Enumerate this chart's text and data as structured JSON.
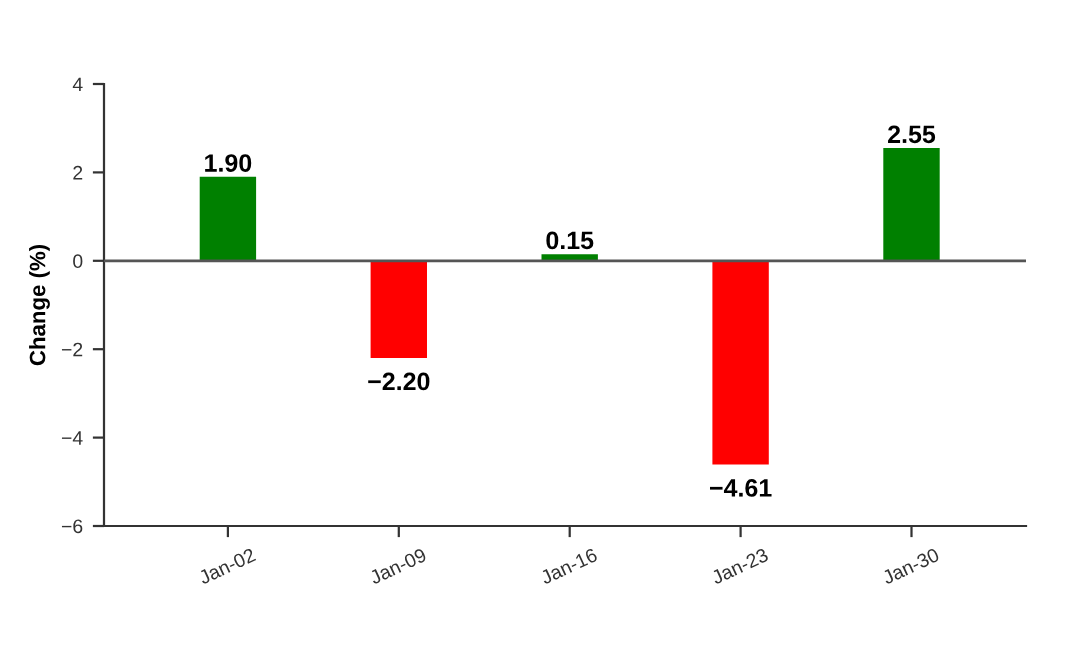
{
  "chart_data": {
    "type": "bar",
    "ylabel": "Change (%)",
    "categories": [
      "Jan-02",
      "Jan-09",
      "Jan-16",
      "Jan-23",
      "Jan-30"
    ],
    "values": [
      1.9,
      -2.2,
      0.15,
      -4.61,
      2.55
    ],
    "colors": [
      "#008000",
      "#ff0000",
      "#008000",
      "#ff0000",
      "#008000"
    ],
    "value_labels": [
      "1.90",
      "−2.20",
      "0.15",
      "−4.61",
      "2.55"
    ],
    "ylim": [
      -6,
      4
    ],
    "yticks": [
      {
        "value": -6,
        "label": "−6"
      },
      {
        "value": -4,
        "label": "−4"
      },
      {
        "value": -2,
        "label": "−2"
      },
      0,
      2,
      4
    ],
    "ref_lines": [
      {
        "axis": "y",
        "value": 0,
        "color": "#555555"
      }
    ],
    "grid": false,
    "legend": false
  }
}
